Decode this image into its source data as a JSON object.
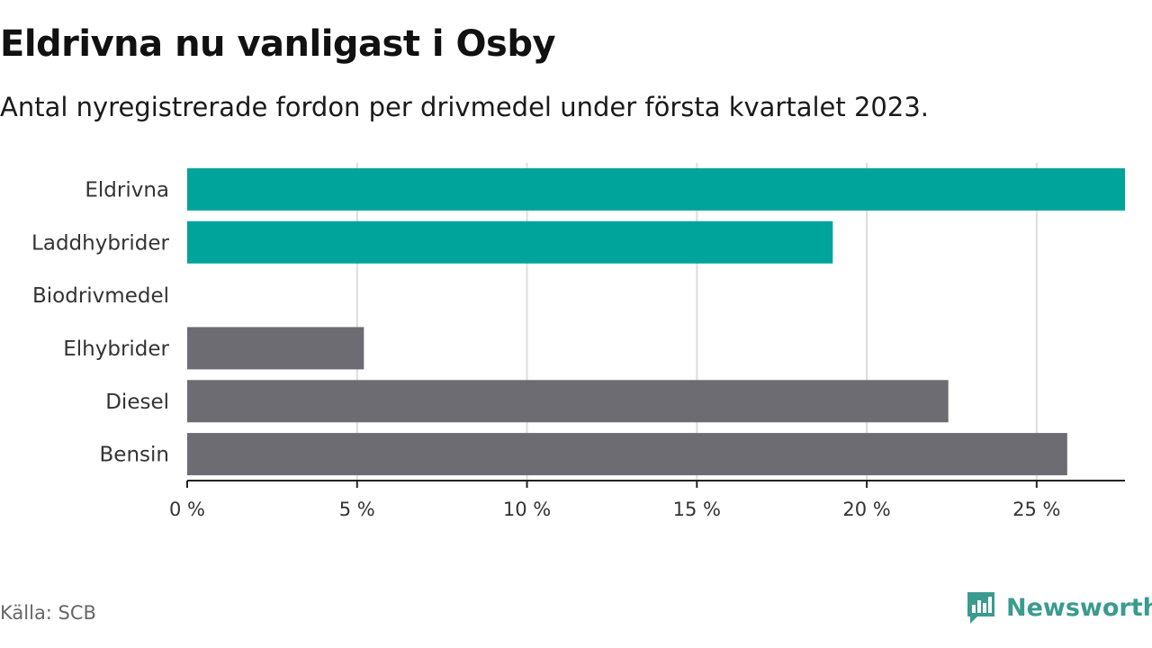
{
  "title": "Eldrivna nu vanligast i Osby",
  "subtitle": "Antal nyregistrerade fordon per drivmedel under första kvartalet 2023.",
  "source": "Källa: SCB",
  "brand": {
    "name": "Newsworthy",
    "icon": "newsworthy-logo-icon",
    "color": "#3a9b8e"
  },
  "chart_data": {
    "type": "bar",
    "orientation": "horizontal",
    "categories": [
      "Eldrivna",
      "Laddhybrider",
      "Biodrivmedel",
      "Elhybrider",
      "Diesel",
      "Bensin"
    ],
    "values": [
      27.6,
      19.0,
      0,
      5.2,
      22.4,
      25.9
    ],
    "bar_colors": [
      "#00a49a",
      "#00a49a",
      "#00a49a",
      "#6d6c73",
      "#6d6c73",
      "#6d6c73"
    ],
    "x_ticks": [
      0,
      5,
      10,
      15,
      20,
      25
    ],
    "tick_labels": [
      "0 %",
      "5 %",
      "10 %",
      "15 %",
      "20 %",
      "25 %"
    ],
    "xlim": [
      0,
      27.6
    ],
    "grid": true
  }
}
